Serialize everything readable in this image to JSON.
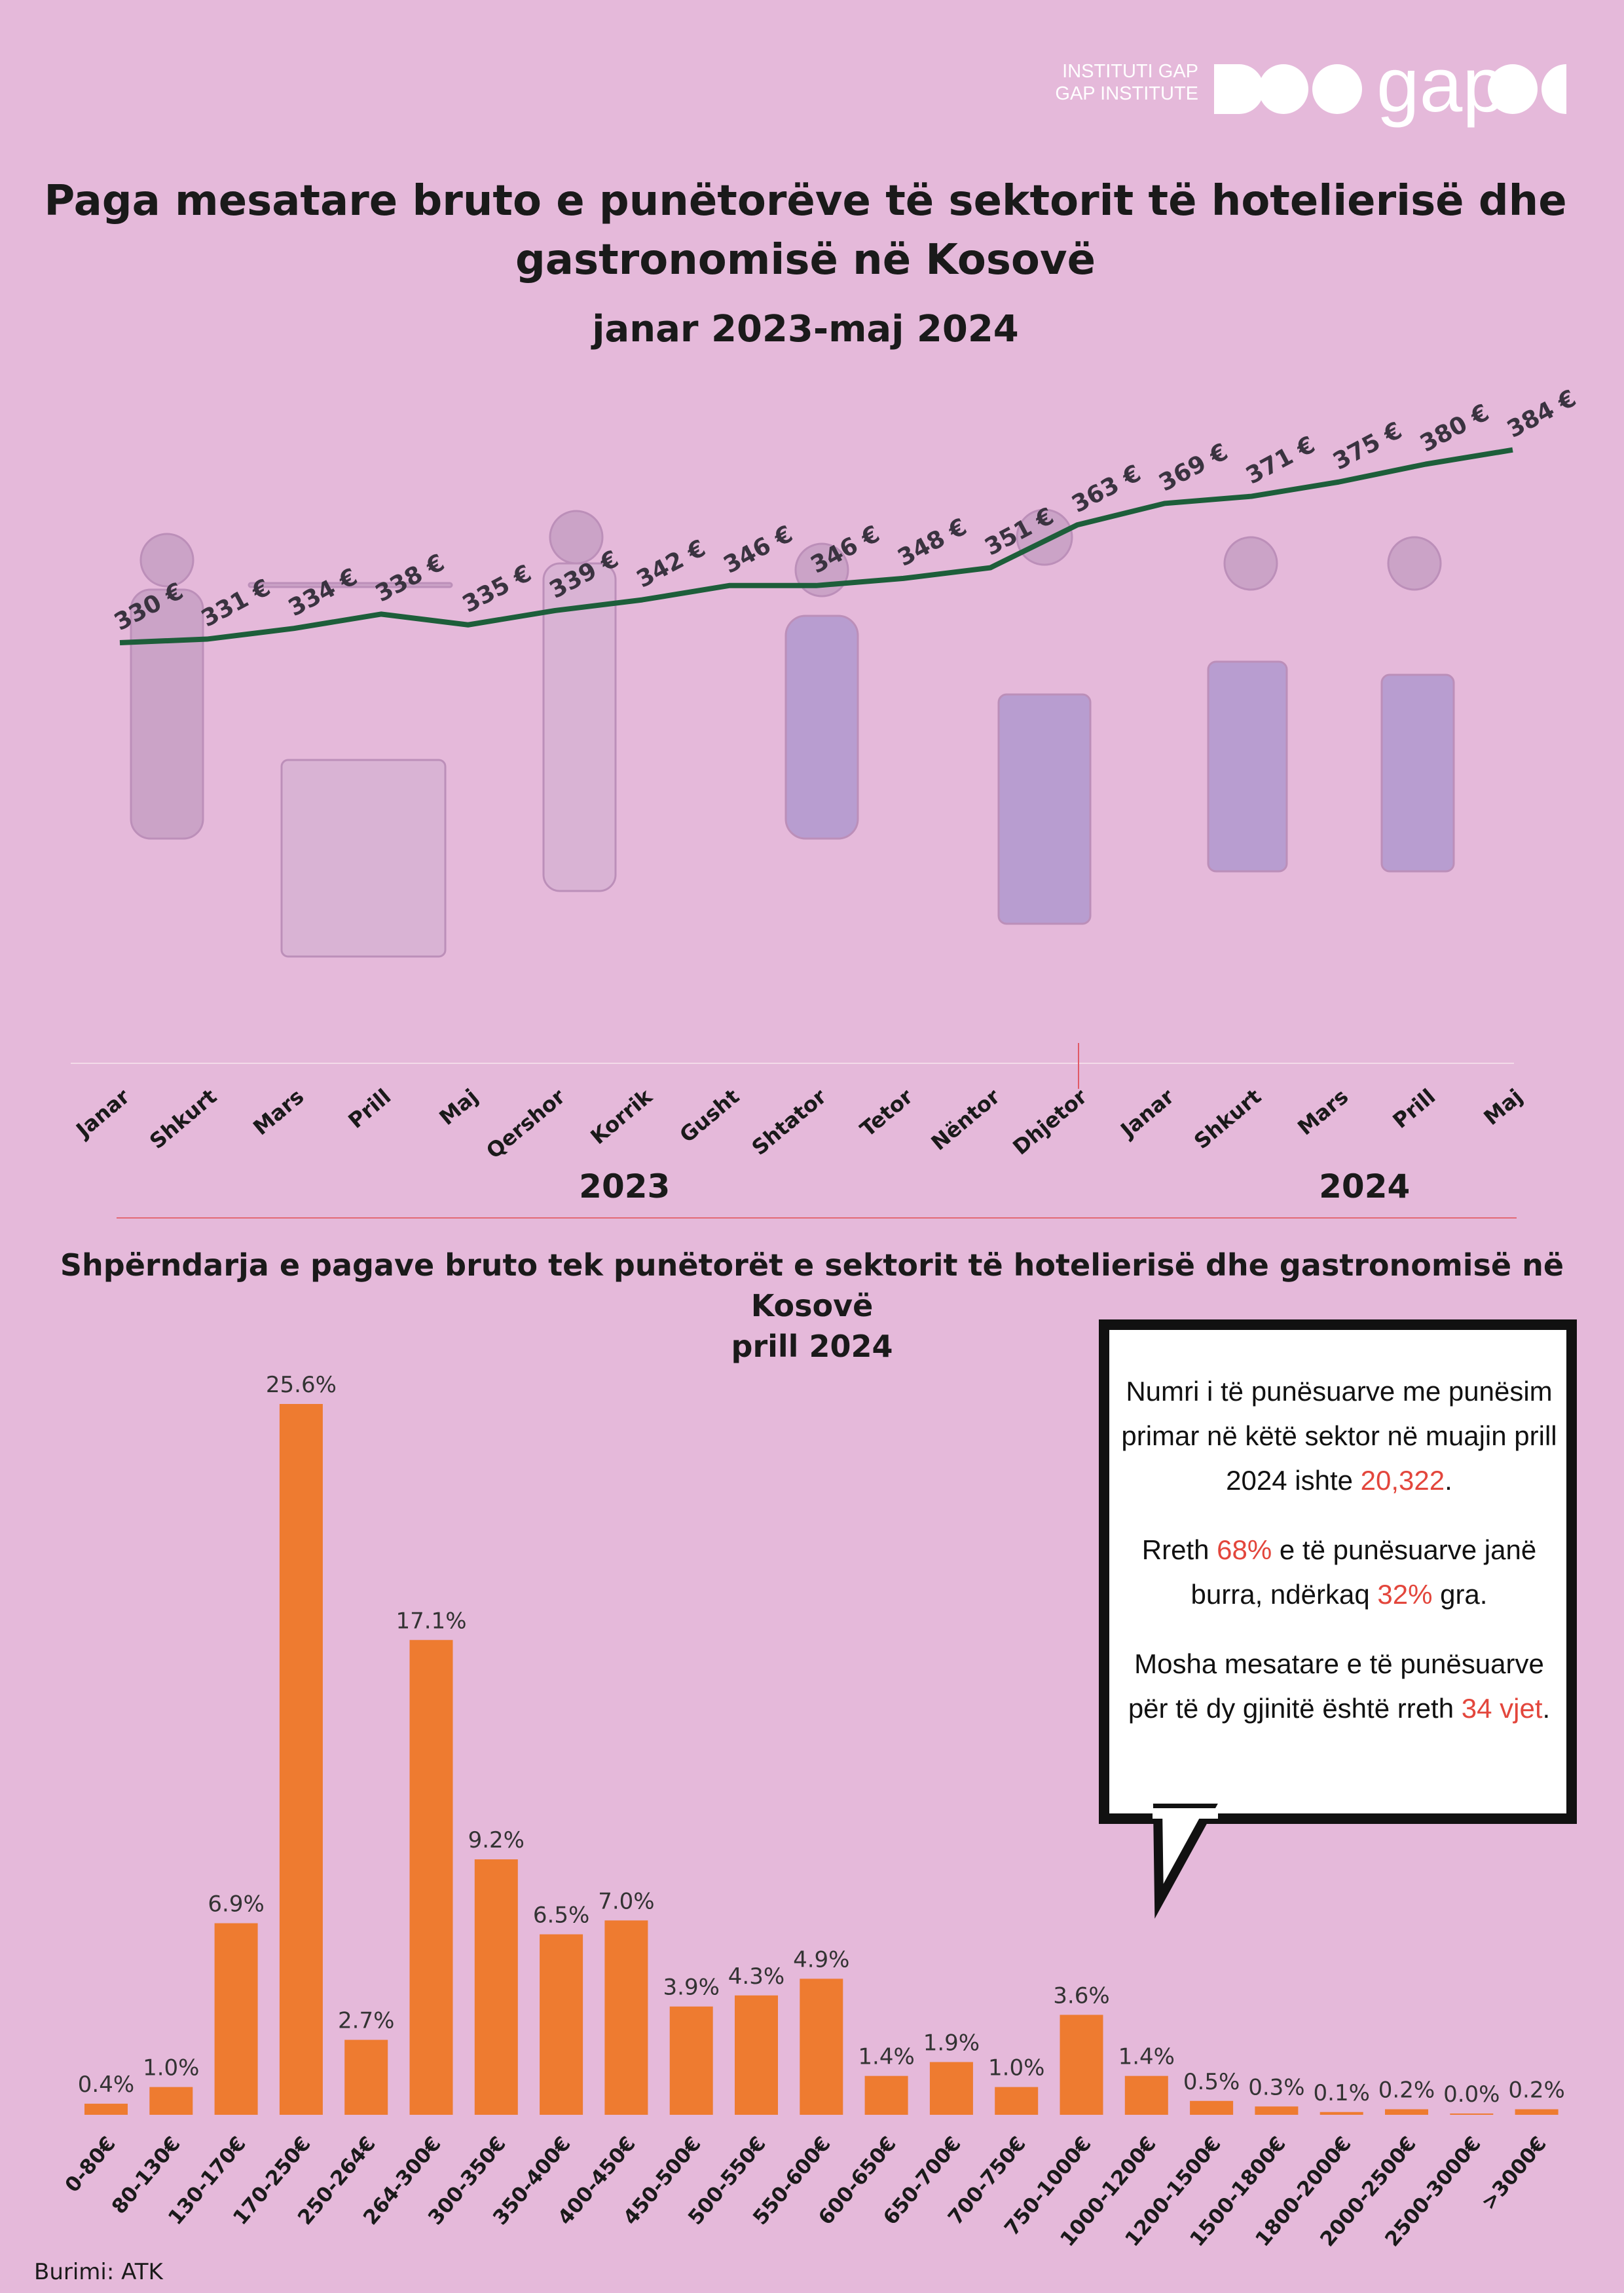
{
  "logo": {
    "line1": "INSTITUTI GAP",
    "line2": "GAP INSTITUTE",
    "wordmark": "gap"
  },
  "title": "Paga mesatare bruto e punëtorëve të sektorit të hotelierisë dhe gastronomisë në Kosovë",
  "subtitle": "janar 2023-maj 2024",
  "colors": {
    "background": "#e5b9da",
    "line": "#1d5e3a",
    "bar": "#ee7b30",
    "highlight": "#e3463c"
  },
  "chart_data": [
    {
      "type": "line",
      "title": "Paga mesatare bruto e punëtorëve të sektorit të hotelierisë dhe gastronomisë në Kosovë",
      "subtitle": "janar 2023-maj 2024",
      "x": [
        "Janar",
        "Shkurt",
        "Mars",
        "Prill",
        "Maj",
        "Qershor",
        "Korrik",
        "Gusht",
        "Shtator",
        "Tetor",
        "Nëntor",
        "Dhjetor",
        "Janar",
        "Shkurt",
        "Mars",
        "Prill",
        "Maj"
      ],
      "years": [
        {
          "label": "2023",
          "months": 12
        },
        {
          "label": "2024",
          "months": 5
        }
      ],
      "values": [
        330,
        331,
        334,
        338,
        335,
        339,
        342,
        346,
        346,
        348,
        351,
        363,
        369,
        371,
        375,
        380,
        384
      ],
      "value_labels": [
        "330 €",
        "331 €",
        "334 €",
        "338 €",
        "335 €",
        "339 €",
        "342 €",
        "346 €",
        "346 €",
        "348 €",
        "351 €",
        "363 €",
        "369 €",
        "371 €",
        "375 €",
        "380 €",
        "384 €"
      ],
      "grid": false
    },
    {
      "type": "bar",
      "title": "Shpërndarja e pagave bruto tek punëtorët e sektorit të hotelierisë dhe gastronomisë në Kosovë",
      "subtitle": "prill 2024",
      "categories": [
        "0-80€",
        "80-130€",
        "130-170€",
        "170-250€",
        "250-264€",
        "264-300€",
        "300-350€",
        "350-400€",
        "400-450€",
        "450-500€",
        "500-550€",
        "550-600€",
        "600-650€",
        "650-700€",
        "700-750€",
        "750-1000€",
        "1000-1200€",
        "1200-1500€",
        "1500-1800€",
        "1800-2000€",
        "2000-2500€",
        "2500-3000€",
        ">3000€"
      ],
      "values": [
        0.4,
        1.0,
        6.9,
        25.6,
        2.7,
        17.1,
        9.2,
        6.5,
        7.0,
        3.9,
        4.3,
        4.9,
        1.4,
        1.9,
        1.0,
        3.6,
        1.4,
        0.5,
        0.3,
        0.1,
        0.2,
        0.0,
        0.2
      ],
      "value_labels": [
        "0.4%",
        "1.0%",
        "6.9%",
        "25.6%",
        "2.7%",
        "17.1%",
        "9.2%",
        "6.5%",
        "7.0%",
        "3.9%",
        "4.3%",
        "4.9%",
        "1.4%",
        "1.9%",
        "1.0%",
        "3.6%",
        "1.4%",
        "0.5%",
        "0.3%",
        "0.1%",
        "0.2%",
        "0.0%",
        "0.2%"
      ],
      "grid": false
    }
  ],
  "callout": {
    "p1_pre": "Numri i të punësuarve me punësim primar në këtë sektor në muajin prill 2024 ishte ",
    "p1_hl": "20,322",
    "p1_post": ".",
    "p2_pre": "Rreth ",
    "p2_hl1": "68%",
    "p2_mid": " e të punësuarve janë burra, ndërkaq ",
    "p2_hl2": "32%",
    "p2_post": " gra.",
    "p3_pre": "Mosha mesatare e të punësuarve për të dy gjinitë është rreth ",
    "p3_hl": "34 vjet",
    "p3_post": "."
  },
  "source": "Burimi: ATK"
}
